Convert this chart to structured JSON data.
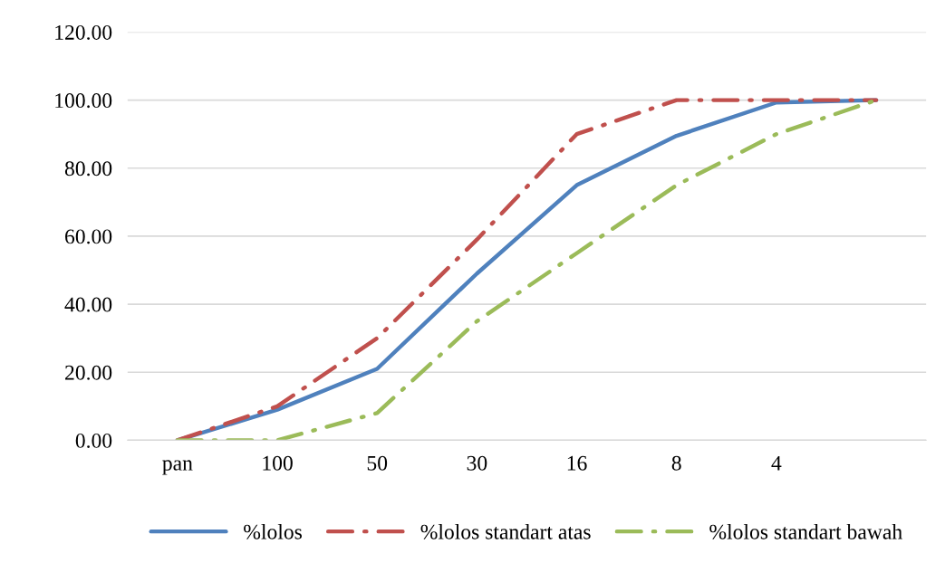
{
  "chart_data": {
    "type": "line",
    "categories": [
      "pan",
      "100",
      "50",
      "30",
      "16",
      "8",
      "4",
      null
    ],
    "series": [
      {
        "name": "%lolos",
        "color": "#4f81bd",
        "line_style": "solid",
        "values": [
          0,
          9,
          21,
          49,
          75,
          89.5,
          99.3,
          100
        ]
      },
      {
        "name": "%lolos standart atas",
        "color": "#c0504d",
        "line_style": "dashed",
        "values": [
          0,
          10,
          30,
          59,
          90,
          100,
          100,
          100
        ]
      },
      {
        "name": "%lolos standart bawah",
        "color": "#9bbb59",
        "line_style": "dashed",
        "values": [
          0,
          0,
          8,
          35,
          55,
          75,
          90,
          100
        ]
      }
    ],
    "ylim": [
      0,
      120
    ],
    "yticks": [
      {
        "value": 0,
        "label": "0.00"
      },
      {
        "value": 20,
        "label": "20.00"
      },
      {
        "value": 40,
        "label": "40.00"
      },
      {
        "value": 60,
        "label": "60.00"
      },
      {
        "value": 80,
        "label": "80.00"
      },
      {
        "value": 100,
        "label": "100.00"
      },
      {
        "value": 120,
        "label": "120.00"
      }
    ],
    "grid": "y",
    "legend": "bottom",
    "marker": "none"
  }
}
